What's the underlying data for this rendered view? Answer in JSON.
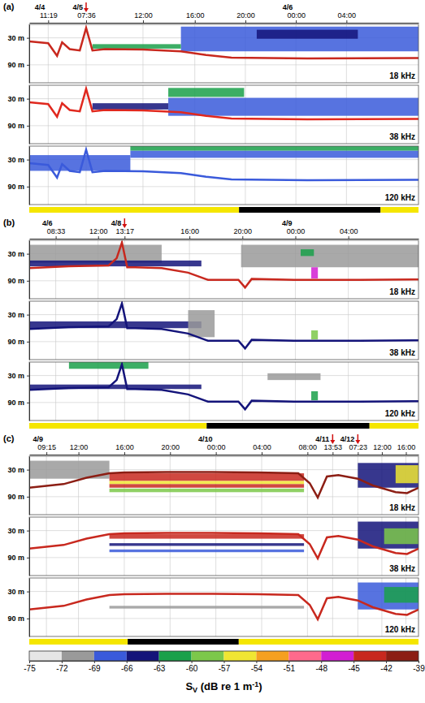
{
  "chart_data": [
    {
      "type": "echogram",
      "label": "(a)",
      "grid": true,
      "xlim": [
        0,
        30.8
      ],
      "xticks": [
        {
          "value": 1.5,
          "label": "11:19"
        },
        {
          "value": 4.5,
          "label": "07:36"
        },
        {
          "value": 9.0,
          "label": "12:00"
        },
        {
          "value": 13.1,
          "label": "16:00"
        },
        {
          "value": 17.1,
          "label": "20:00"
        },
        {
          "value": 21.1,
          "label": "00:00"
        },
        {
          "value": 25.1,
          "label": "04:00"
        }
      ],
      "dates": [
        {
          "x": 1.5,
          "label": "4/4"
        },
        {
          "x": 4.5,
          "label": "4/5"
        },
        {
          "x": 21.1,
          "label": "4/6"
        }
      ],
      "arrows": [
        4.5
      ],
      "ylim": [
        0,
        130
      ],
      "yticks": [
        {
          "value": 30,
          "label": "30 m"
        },
        {
          "value": 90,
          "label": "90 m"
        }
      ],
      "daynight": [
        {
          "x0": 0,
          "x1": 16.6,
          "color": "#f5e600"
        },
        {
          "x0": 16.6,
          "x1": 27.8,
          "color": "#000000"
        },
        {
          "x0": 27.8,
          "x1": 30.8,
          "color": "#f5e600"
        }
      ],
      "strips": [
        {
          "label": "18 kHz",
          "bottom": {
            "x": [
              0,
              1.5,
              2.2,
              2.6,
              3.2,
              4.0,
              4.5,
              5.0,
              6,
              9,
              12,
              14,
              16,
              22,
              30.8
            ],
            "depth": [
              38,
              42,
              70,
              40,
              55,
              58,
              8,
              58,
              55,
              56,
              60,
              68,
              74,
              76,
              75
            ],
            "color": "#c8281e"
          },
          "layers": [
            {
              "x0": 12,
              "x1": 30.8,
              "d0": 5,
              "d1": 60,
              "sv": -67
            },
            {
              "x0": 18,
              "x1": 26,
              "d0": 12,
              "d1": 32,
              "sv": -64
            },
            {
              "x0": 5,
              "x1": 12,
              "d0": 44,
              "d1": 54,
              "sv": -61
            }
          ]
        },
        {
          "label": "38 kHz",
          "bottom": {
            "x": [
              0,
              1.5,
              2.2,
              2.6,
              3.2,
              4.0,
              4.5,
              5.0,
              6,
              9,
              12,
              14,
              16,
              22,
              30.8
            ],
            "depth": [
              38,
              42,
              70,
              40,
              55,
              58,
              8,
              58,
              55,
              56,
              60,
              68,
              74,
              76,
              75
            ],
            "color": "#e0281e"
          },
          "layers": [
            {
              "x0": 11,
              "x1": 30.8,
              "d0": 28,
              "d1": 68,
              "sv": -67
            },
            {
              "x0": 11,
              "x1": 17,
              "d0": 6,
              "d1": 26,
              "sv": -61
            },
            {
              "x0": 5,
              "x1": 11,
              "d0": 40,
              "d1": 54,
              "sv": -64
            }
          ]
        },
        {
          "label": "120 kHz",
          "bottom": {
            "x": [
              0,
              1.5,
              2.2,
              2.6,
              3.2,
              4.0,
              4.5,
              5.0,
              6,
              9,
              12,
              14,
              16,
              22,
              30.8
            ],
            "depth": [
              38,
              42,
              70,
              40,
              55,
              58,
              8,
              58,
              55,
              56,
              60,
              68,
              74,
              76,
              75
            ],
            "color": "#3a5adb"
          },
          "layers": [
            {
              "x0": 8,
              "x1": 30.8,
              "d0": 10,
              "d1": 26,
              "sv": -67
            },
            {
              "x0": 8,
              "x1": 30.8,
              "d0": 0,
              "d1": 10,
              "sv": -61
            },
            {
              "x0": 0,
              "x1": 8,
              "d0": 20,
              "d1": 55,
              "sv": -67
            }
          ]
        }
      ]
    },
    {
      "type": "echogram",
      "label": "(b)",
      "grid": true,
      "xlim": [
        0,
        29.4
      ],
      "xticks": [
        {
          "value": 2.0,
          "label": "08:33"
        },
        {
          "value": 5.2,
          "label": "12:00"
        },
        {
          "value": 7.2,
          "label": "13:17"
        },
        {
          "value": 12.1,
          "label": "16:00"
        },
        {
          "value": 16.1,
          "label": "20:00"
        },
        {
          "value": 20.1,
          "label": "00:00"
        },
        {
          "value": 24.1,
          "label": "04:00"
        }
      ],
      "dates": [
        {
          "x": 2.0,
          "label": "4/6"
        },
        {
          "x": 7.2,
          "label": "4/8"
        },
        {
          "x": 20.1,
          "label": "4/9"
        }
      ],
      "arrows": [
        7.2
      ],
      "ylim": [
        0,
        130
      ],
      "yticks": [
        {
          "value": 30,
          "label": "30 m"
        },
        {
          "value": 90,
          "label": "90 m"
        }
      ],
      "daynight": [
        {
          "x0": 0,
          "x1": 13.4,
          "color": "#f5e600"
        },
        {
          "x0": 13.4,
          "x1": 25.7,
          "color": "#000000"
        },
        {
          "x0": 25.7,
          "x1": 29.4,
          "color": "#f5e600"
        }
      ],
      "strips": [
        {
          "label": "18 kHz",
          "bottom": {
            "x": [
              0,
              3,
              6,
              6.6,
              7.0,
              7.4,
              8,
              10,
              12,
              13.5,
              15.8,
              16.3,
              16.8,
              20,
              25,
              29.4
            ],
            "depth": [
              62,
              58,
              56,
              40,
              5,
              60,
              60,
              62,
              72,
              88,
              88,
              105,
              86,
              88,
              88,
              87
            ],
            "color": "#c8281e"
          },
          "layers": [
            {
              "x0": 0,
              "x1": 10,
              "d0": 10,
              "d1": 50,
              "sv": -70
            },
            {
              "x0": 16,
              "x1": 29.4,
              "d0": 10,
              "d1": 60,
              "sv": -70
            },
            {
              "x0": 0,
              "x1": 13,
              "d0": 45,
              "d1": 58,
              "sv": -64
            },
            {
              "x0": 20.5,
              "x1": 21.5,
              "d0": 20,
              "d1": 35,
              "sv": -61
            },
            {
              "x0": 21.3,
              "x1": 21.8,
              "d0": 60,
              "d1": 85,
              "sv": -47
            }
          ]
        },
        {
          "label": "38 kHz",
          "bottom": {
            "x": [
              0,
              3,
              6,
              6.6,
              7.0,
              7.4,
              8,
              10,
              12,
              13.5,
              15.8,
              16.3,
              16.8,
              20,
              25,
              29.4
            ],
            "depth": [
              62,
              58,
              56,
              40,
              5,
              60,
              60,
              62,
              72,
              88,
              88,
              105,
              86,
              88,
              88,
              87
            ],
            "color": "#14147a"
          },
          "layers": [
            {
              "x0": 0,
              "x1": 13,
              "d0": 45,
              "d1": 60,
              "sv": -64
            },
            {
              "x0": 12,
              "x1": 14,
              "d0": 20,
              "d1": 80,
              "sv": -70
            },
            {
              "x0": 21.3,
              "x1": 21.8,
              "d0": 65,
              "d1": 85,
              "sv": -58
            }
          ]
        },
        {
          "label": "120 kHz",
          "bottom": {
            "x": [
              0,
              3,
              6,
              6.6,
              7.0,
              7.4,
              8,
              10,
              12,
              13.5,
              15.8,
              16.3,
              16.8,
              20,
              25,
              29.4
            ],
            "depth": [
              62,
              58,
              56,
              40,
              5,
              60,
              60,
              62,
              72,
              88,
              88,
              105,
              86,
              88,
              88,
              87
            ],
            "color": "#14147a"
          },
          "layers": [
            {
              "x0": 3,
              "x1": 9,
              "d0": 0,
              "d1": 15,
              "sv": -61
            },
            {
              "x0": 0,
              "x1": 13,
              "d0": 50,
              "d1": 60,
              "sv": -64
            },
            {
              "x0": 18,
              "x1": 22,
              "d0": 25,
              "d1": 40,
              "sv": -70
            },
            {
              "x0": 21.3,
              "x1": 21.8,
              "d0": 65,
              "d1": 85,
              "sv": -61
            }
          ]
        }
      ]
    },
    {
      "type": "echogram",
      "label": "(c)",
      "grid": true,
      "xlim": [
        0,
        34
      ],
      "xticks": [
        {
          "value": 1.5,
          "label": "09:15"
        },
        {
          "value": 4.3,
          "label": "12:00"
        },
        {
          "value": 8.3,
          "label": "16:00"
        },
        {
          "value": 12.3,
          "label": "20:00"
        },
        {
          "value": 16.3,
          "label": "00:00"
        },
        {
          "value": 20.3,
          "label": "04:00"
        },
        {
          "value": 24.3,
          "label": "08:00"
        },
        {
          "value": 26.5,
          "label": "13:53"
        },
        {
          "value": 28.7,
          "label": "07:23"
        },
        {
          "value": 30.8,
          "label": "12:00"
        },
        {
          "value": 32.9,
          "label": "16:00"
        }
      ],
      "dates": [
        {
          "x": 1.5,
          "label": "4/9"
        },
        {
          "x": 16.3,
          "label": "4/10"
        },
        {
          "x": 26.5,
          "label": "4/11"
        },
        {
          "x": 28.7,
          "label": "4/12"
        }
      ],
      "arrows": [
        26.5,
        28.7
      ],
      "ylim": [
        0,
        130
      ],
      "yticks": [
        {
          "value": 30,
          "label": "30 m"
        },
        {
          "value": 90,
          "label": "90 m"
        }
      ],
      "daynight": [
        {
          "x0": 0,
          "x1": 8.6,
          "color": "#f5e600"
        },
        {
          "x0": 8.6,
          "x1": 18.3,
          "color": "#000000"
        },
        {
          "x0": 18.3,
          "x1": 34,
          "color": "#f5e600"
        }
      ],
      "strips": [
        {
          "label": "18 kHz",
          "bottom": {
            "x": [
              0,
              3,
              5,
              7,
              8.3,
              12,
              16,
              20,
              23.5,
              24.5,
              25.2,
              26,
              27,
              28.7,
              30,
              32,
              33,
              34
            ],
            "depth": [
              70,
              62,
              48,
              38,
              36,
              35,
              35,
              36,
              38,
              60,
              92,
              45,
              42,
              50,
              65,
              80,
              82,
              70
            ],
            "color": "#8c1e14"
          },
          "layers": [
            {
              "x0": 0,
              "x1": 7,
              "d0": 10,
              "d1": 50,
              "sv": -70
            },
            {
              "x0": 7,
              "x1": 24,
              "d0": 38,
              "d1": 55,
              "sv": -44
            },
            {
              "x0": 7,
              "x1": 24,
              "d0": 55,
              "d1": 62,
              "sv": -55
            },
            {
              "x0": 7,
              "x1": 24,
              "d0": 62,
              "d1": 70,
              "sv": -44
            },
            {
              "x0": 7,
              "x1": 24,
              "d0": 72,
              "d1": 80,
              "sv": -58
            },
            {
              "x0": 28.7,
              "x1": 34,
              "d0": 15,
              "d1": 70,
              "sv": -64
            },
            {
              "x0": 32,
              "x1": 34,
              "d0": 20,
              "d1": 60,
              "sv": -55
            }
          ]
        },
        {
          "label": "38 kHz",
          "bottom": {
            "x": [
              0,
              3,
              5,
              7,
              8.3,
              12,
              16,
              20,
              23.5,
              24.5,
              25.2,
              26,
              27,
              28.7,
              30,
              32,
              33,
              34
            ],
            "depth": [
              70,
              62,
              48,
              38,
              36,
              35,
              35,
              36,
              38,
              60,
              92,
              45,
              42,
              50,
              65,
              80,
              82,
              70
            ],
            "color": "#c8281e"
          },
          "layers": [
            {
              "x0": 7,
              "x1": 24,
              "d0": 38,
              "d1": 48,
              "sv": -44
            },
            {
              "x0": 7,
              "x1": 24,
              "d0": 58,
              "d1": 64,
              "sv": -64
            },
            {
              "x0": 7,
              "x1": 24,
              "d0": 72,
              "d1": 78,
              "sv": -67
            },
            {
              "x0": 28.7,
              "x1": 34,
              "d0": 10,
              "d1": 70,
              "sv": -64
            },
            {
              "x0": 31,
              "x1": 34,
              "d0": 25,
              "d1": 60,
              "sv": -58
            }
          ]
        },
        {
          "label": "120 kHz",
          "bottom": {
            "x": [
              0,
              3,
              5,
              7,
              8.3,
              12,
              16,
              20,
              23.5,
              24.5,
              25.2,
              26,
              27,
              28.7,
              30,
              32,
              33,
              34
            ],
            "depth": [
              70,
              62,
              48,
              38,
              36,
              35,
              35,
              36,
              38,
              60,
              92,
              45,
              42,
              50,
              65,
              80,
              82,
              70
            ],
            "color": "#c8281e"
          },
          "layers": [
            {
              "x0": 7,
              "x1": 24,
              "d0": 62,
              "d1": 68,
              "sv": -70
            },
            {
              "x0": 28.7,
              "x1": 34,
              "d0": 10,
              "d1": 70,
              "sv": -67
            },
            {
              "x0": 31,
              "x1": 34,
              "d0": 20,
              "d1": 55,
              "sv": -61
            }
          ]
        }
      ]
    }
  ],
  "colorbar": {
    "range": [
      -75,
      -39
    ],
    "ticks": [
      -75,
      -72,
      -69,
      -66,
      -63,
      -60,
      -57,
      -54,
      -51,
      -48,
      -45,
      -42,
      -39
    ],
    "colors": [
      "#e6e6e6",
      "#9a9a9a",
      "#3a5adb",
      "#14147a",
      "#1aa04a",
      "#7cc84a",
      "#f0e632",
      "#f5a020",
      "#ff6a8c",
      "#d21ed2",
      "#c8281e",
      "#8c1e14"
    ],
    "label": [
      "S",
      "V",
      " (dB re 1 m",
      "-1",
      ")"
    ]
  }
}
